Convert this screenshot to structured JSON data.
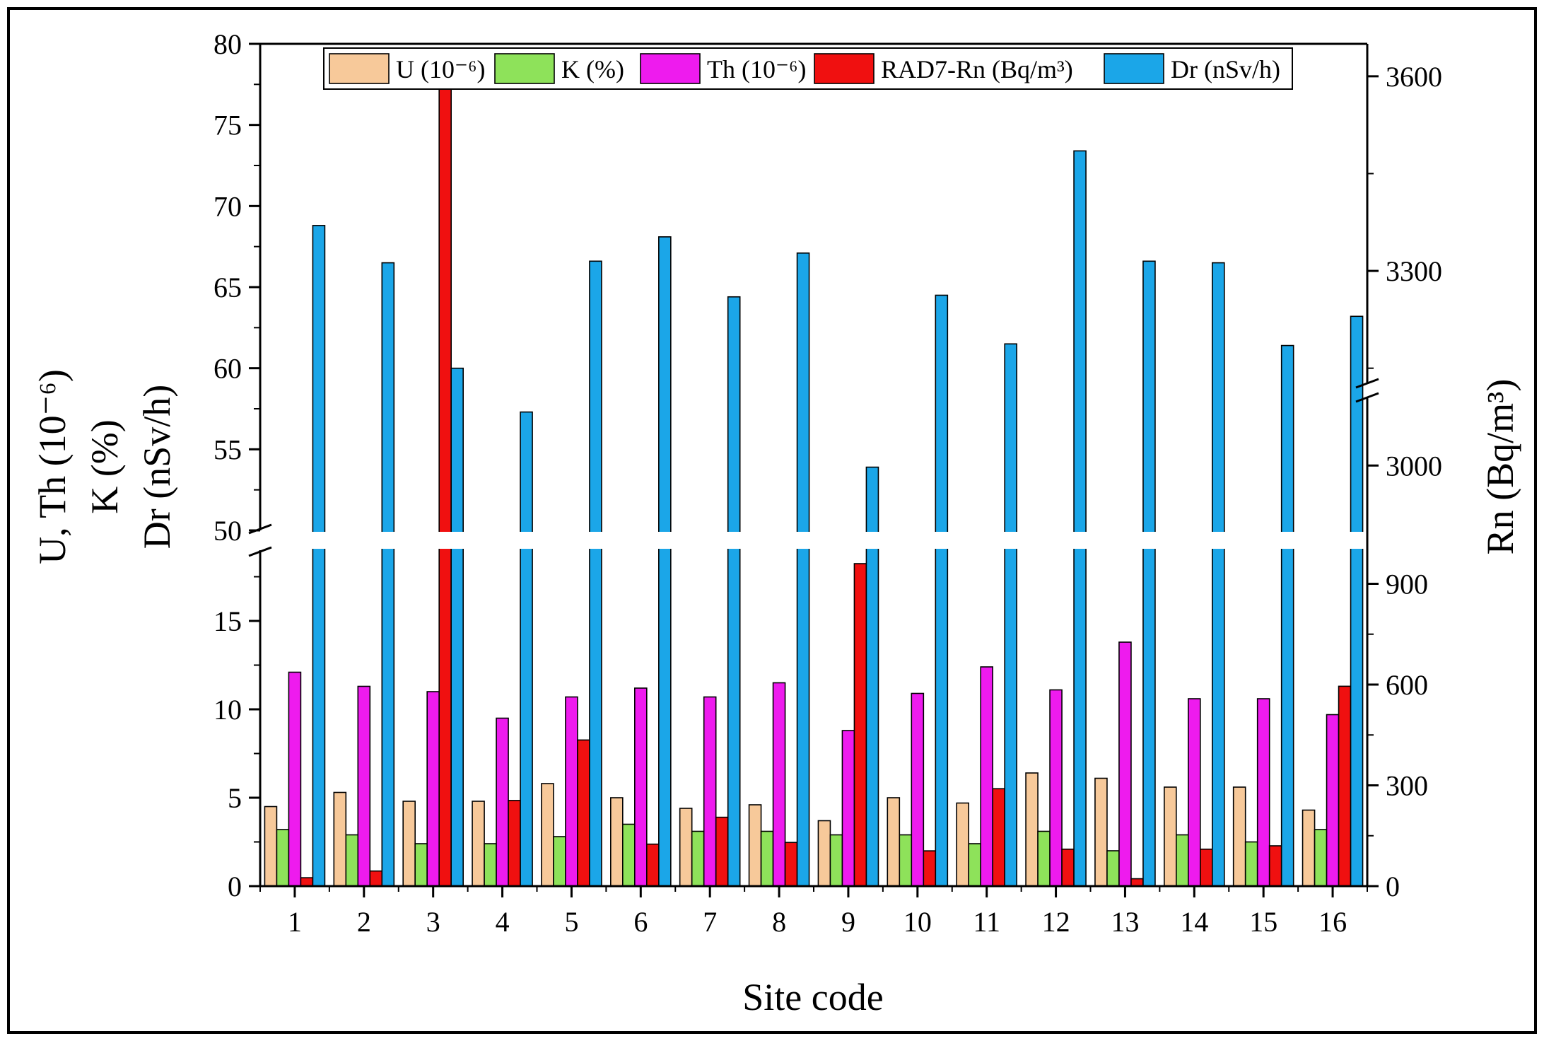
{
  "chart_data": {
    "type": "bar",
    "xlabel": "Site code",
    "ylabel_left": [
      "U, Th (10⁻⁶)",
      "K (%)",
      "Dr (nSv/h)"
    ],
    "ylabel_right": "Rn (Bq/m³)",
    "categories": [
      "1",
      "2",
      "3",
      "4",
      "5",
      "6",
      "7",
      "8",
      "9",
      "10",
      "11",
      "12",
      "13",
      "14",
      "15",
      "16"
    ],
    "left_axis": {
      "break": [
        19,
        50
      ],
      "lower_range": [
        0,
        19
      ],
      "upper_range": [
        50,
        80
      ],
      "lower_ticks": [
        "0",
        "5",
        "10",
        "15"
      ],
      "upper_ticks": [
        "50",
        "55",
        "60",
        "65",
        "70",
        "75",
        "80"
      ]
    },
    "right_axis": {
      "break": [
        1000,
        2900
      ],
      "lower_range": [
        0,
        1000
      ],
      "upper_range": [
        2900,
        3650
      ],
      "lower_ticks": [
        "0",
        "300",
        "600",
        "900"
      ],
      "upper_ticks": [
        "3000",
        "3300",
        "3600"
      ]
    },
    "series": [
      {
        "name": "U (10⁻⁶)",
        "axis": "left",
        "color": "#F7C99A",
        "values": [
          4.5,
          5.3,
          4.8,
          4.8,
          5.8,
          5.0,
          4.4,
          4.6,
          3.7,
          5.0,
          4.7,
          6.4,
          6.1,
          5.6,
          5.6,
          4.3
        ]
      },
      {
        "name": "K (%)",
        "axis": "left",
        "color": "#8EE25A",
        "values": [
          3.2,
          2.9,
          2.4,
          2.4,
          2.8,
          3.5,
          3.1,
          3.1,
          2.9,
          2.9,
          2.4,
          3.1,
          2.0,
          2.9,
          2.5,
          3.2
        ]
      },
      {
        "name": "Th (10⁻⁶)",
        "axis": "left",
        "color": "#EE1BEE",
        "values": [
          12.1,
          11.3,
          11.0,
          9.5,
          10.7,
          11.2,
          10.7,
          11.5,
          8.8,
          10.9,
          12.4,
          11.1,
          13.8,
          10.6,
          10.6,
          9.7
        ]
      },
      {
        "name": "RAD7-Rn (Bq/m³)",
        "axis": "right",
        "color": "#F01010",
        "values": [
          25,
          45,
          3590,
          255,
          435,
          125,
          205,
          130,
          960,
          105,
          290,
          110,
          22,
          110,
          120,
          595
        ]
      },
      {
        "name": "Dr (nSv/h)",
        "axis": "left",
        "color": "#1BA6E8",
        "values": [
          68.8,
          66.5,
          60.0,
          57.3,
          66.6,
          68.1,
          64.4,
          67.1,
          53.9,
          64.5,
          61.5,
          73.4,
          66.6,
          66.5,
          61.4,
          63.2
        ]
      }
    ]
  }
}
